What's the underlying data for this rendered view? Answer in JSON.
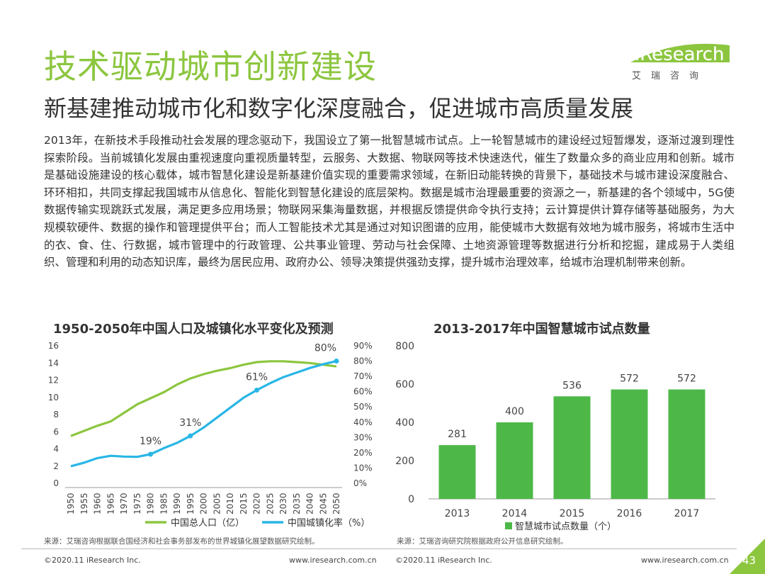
{
  "title": "技术驱动城市创新建设",
  "subtitle": "新基建推动城市化和数字化深度融合，促进城市高质量发展",
  "logo": {
    "brand": "iResearch",
    "cn": "艾瑞咨询"
  },
  "body_text": "2013年，在新技术手段推动社会发展的理念驱动下，我国设立了第一批智慧城市试点。上一轮智慧城市的建设经过短暂爆发，逐渐过渡到理性探索阶段。当前城镇化发展由重视速度向重视质量转型，云服务、大数据、物联网等技术快速迭代，催生了数量众多的商业应用和创新。城市是基础设施建设的核心载体，城市智慧化建设是新基建价值实现的重要需求领域，在新旧动能转换的背景下，基础技术与城市建设深度融合、环环相扣，共同支撑起我国城市从信息化、智能化到智慧化建设的底层架构。数据是城市治理最重要的资源之一，新基建的各个领域中，5G使数据传输实现跳跃式发展，满足更多应用场景；物联网采集海量数据，并根据反馈提供命令执行支持；云计算提供计算存储等基础服务，为大规模软硬件、数据的操作和管理提供平台；而人工智能技术尤其是通过对知识图谱的应用，能使城市大数据有效地为城市服务，将城市生活中的衣、食、住、行数据，城市管理中的行政管理、公共事业管理、劳动与社会保障、土地资源管理等数据进行分析和挖掘，建成易于人类组织、管理和利用的动态知识库，最终为居民应用、政府办公、领导决策提供强劲支撑，提升城市治理效率，给城市治理机制带来创新。",
  "colors": {
    "green": "#8cc63f",
    "blue": "#29b6e6",
    "bar": "#4db848"
  },
  "chart_data": [
    {
      "type": "line",
      "title": "1950-2050年中国人口及城镇化水平变化及预测",
      "x": [
        "1950",
        "1955",
        "1960",
        "1965",
        "1970",
        "1975",
        "1980",
        "1985",
        "1990",
        "1995",
        "2000",
        "2005",
        "2010",
        "2015",
        "2020",
        "2025",
        "2030",
        "2035",
        "2040",
        "2045",
        "2050"
      ],
      "y_left_ticks": [
        "0",
        "2",
        "4",
        "6",
        "8",
        "10",
        "12",
        "14",
        "16"
      ],
      "y_right_ticks": [
        "0%",
        "10%",
        "20%",
        "30%",
        "40%",
        "50%",
        "60%",
        "70%",
        "80%",
        "90%"
      ],
      "ylim_left": [
        0,
        16
      ],
      "ylim_right": [
        0,
        90
      ],
      "series": [
        {
          "name": "中国总人口（亿）",
          "axis": "left",
          "color": "#8cc63f",
          "values": [
            5.5,
            6.1,
            6.7,
            7.2,
            8.2,
            9.2,
            9.9,
            10.6,
            11.5,
            12.2,
            12.7,
            13.1,
            13.4,
            13.8,
            14.1,
            14.2,
            14.2,
            14.1,
            14.0,
            13.8,
            13.6
          ]
        },
        {
          "name": "中国城镇化率（%）",
          "axis": "right",
          "color": "#29b6e6",
          "values": [
            11.2,
            13.5,
            16.5,
            18.0,
            17.5,
            17.3,
            19.0,
            23.0,
            26.5,
            31.0,
            36.5,
            43.0,
            49.5,
            56.0,
            61.0,
            65.5,
            69.5,
            72.5,
            75.5,
            78.0,
            80.0
          ],
          "labels": [
            {
              "x": "1980",
              "text": "19%"
            },
            {
              "x": "1995",
              "text": "31%"
            },
            {
              "x": "2020",
              "text": "61%"
            },
            {
              "x": "2050",
              "text": "80%"
            }
          ]
        }
      ],
      "legend": [
        "中国总人口（亿）",
        "中国城镇化率（%）"
      ],
      "legend_placement": "bottom"
    },
    {
      "type": "bar",
      "title": "2013-2017年中国智慧城市试点数量",
      "categories": [
        "2013",
        "2014",
        "2015",
        "2016",
        "2017"
      ],
      "values": [
        281,
        400,
        536,
        572,
        572
      ],
      "y_ticks": [
        "0",
        "200",
        "400",
        "600",
        "800"
      ],
      "ylim": [
        0,
        800
      ],
      "series_name": "智慧城市试点数量（个）",
      "color": "#4db848",
      "legend_placement": "bottom"
    }
  ],
  "sources": {
    "left": "来源：艾瑞咨询根据联合国经济和社会事务部发布的世界城镇化展望数据研究绘制。",
    "right": "来源：艾瑞咨询研究院根据政府公开信息研究绘制。"
  },
  "footer": {
    "copyright_left": "©2020.11 iResearch Inc.",
    "url_left": "www.iresearch.com.cn",
    "copyright_right": "©2020.11 iResearch Inc.",
    "url_right": "www.iresearch.com.cn",
    "page_number": "43"
  }
}
